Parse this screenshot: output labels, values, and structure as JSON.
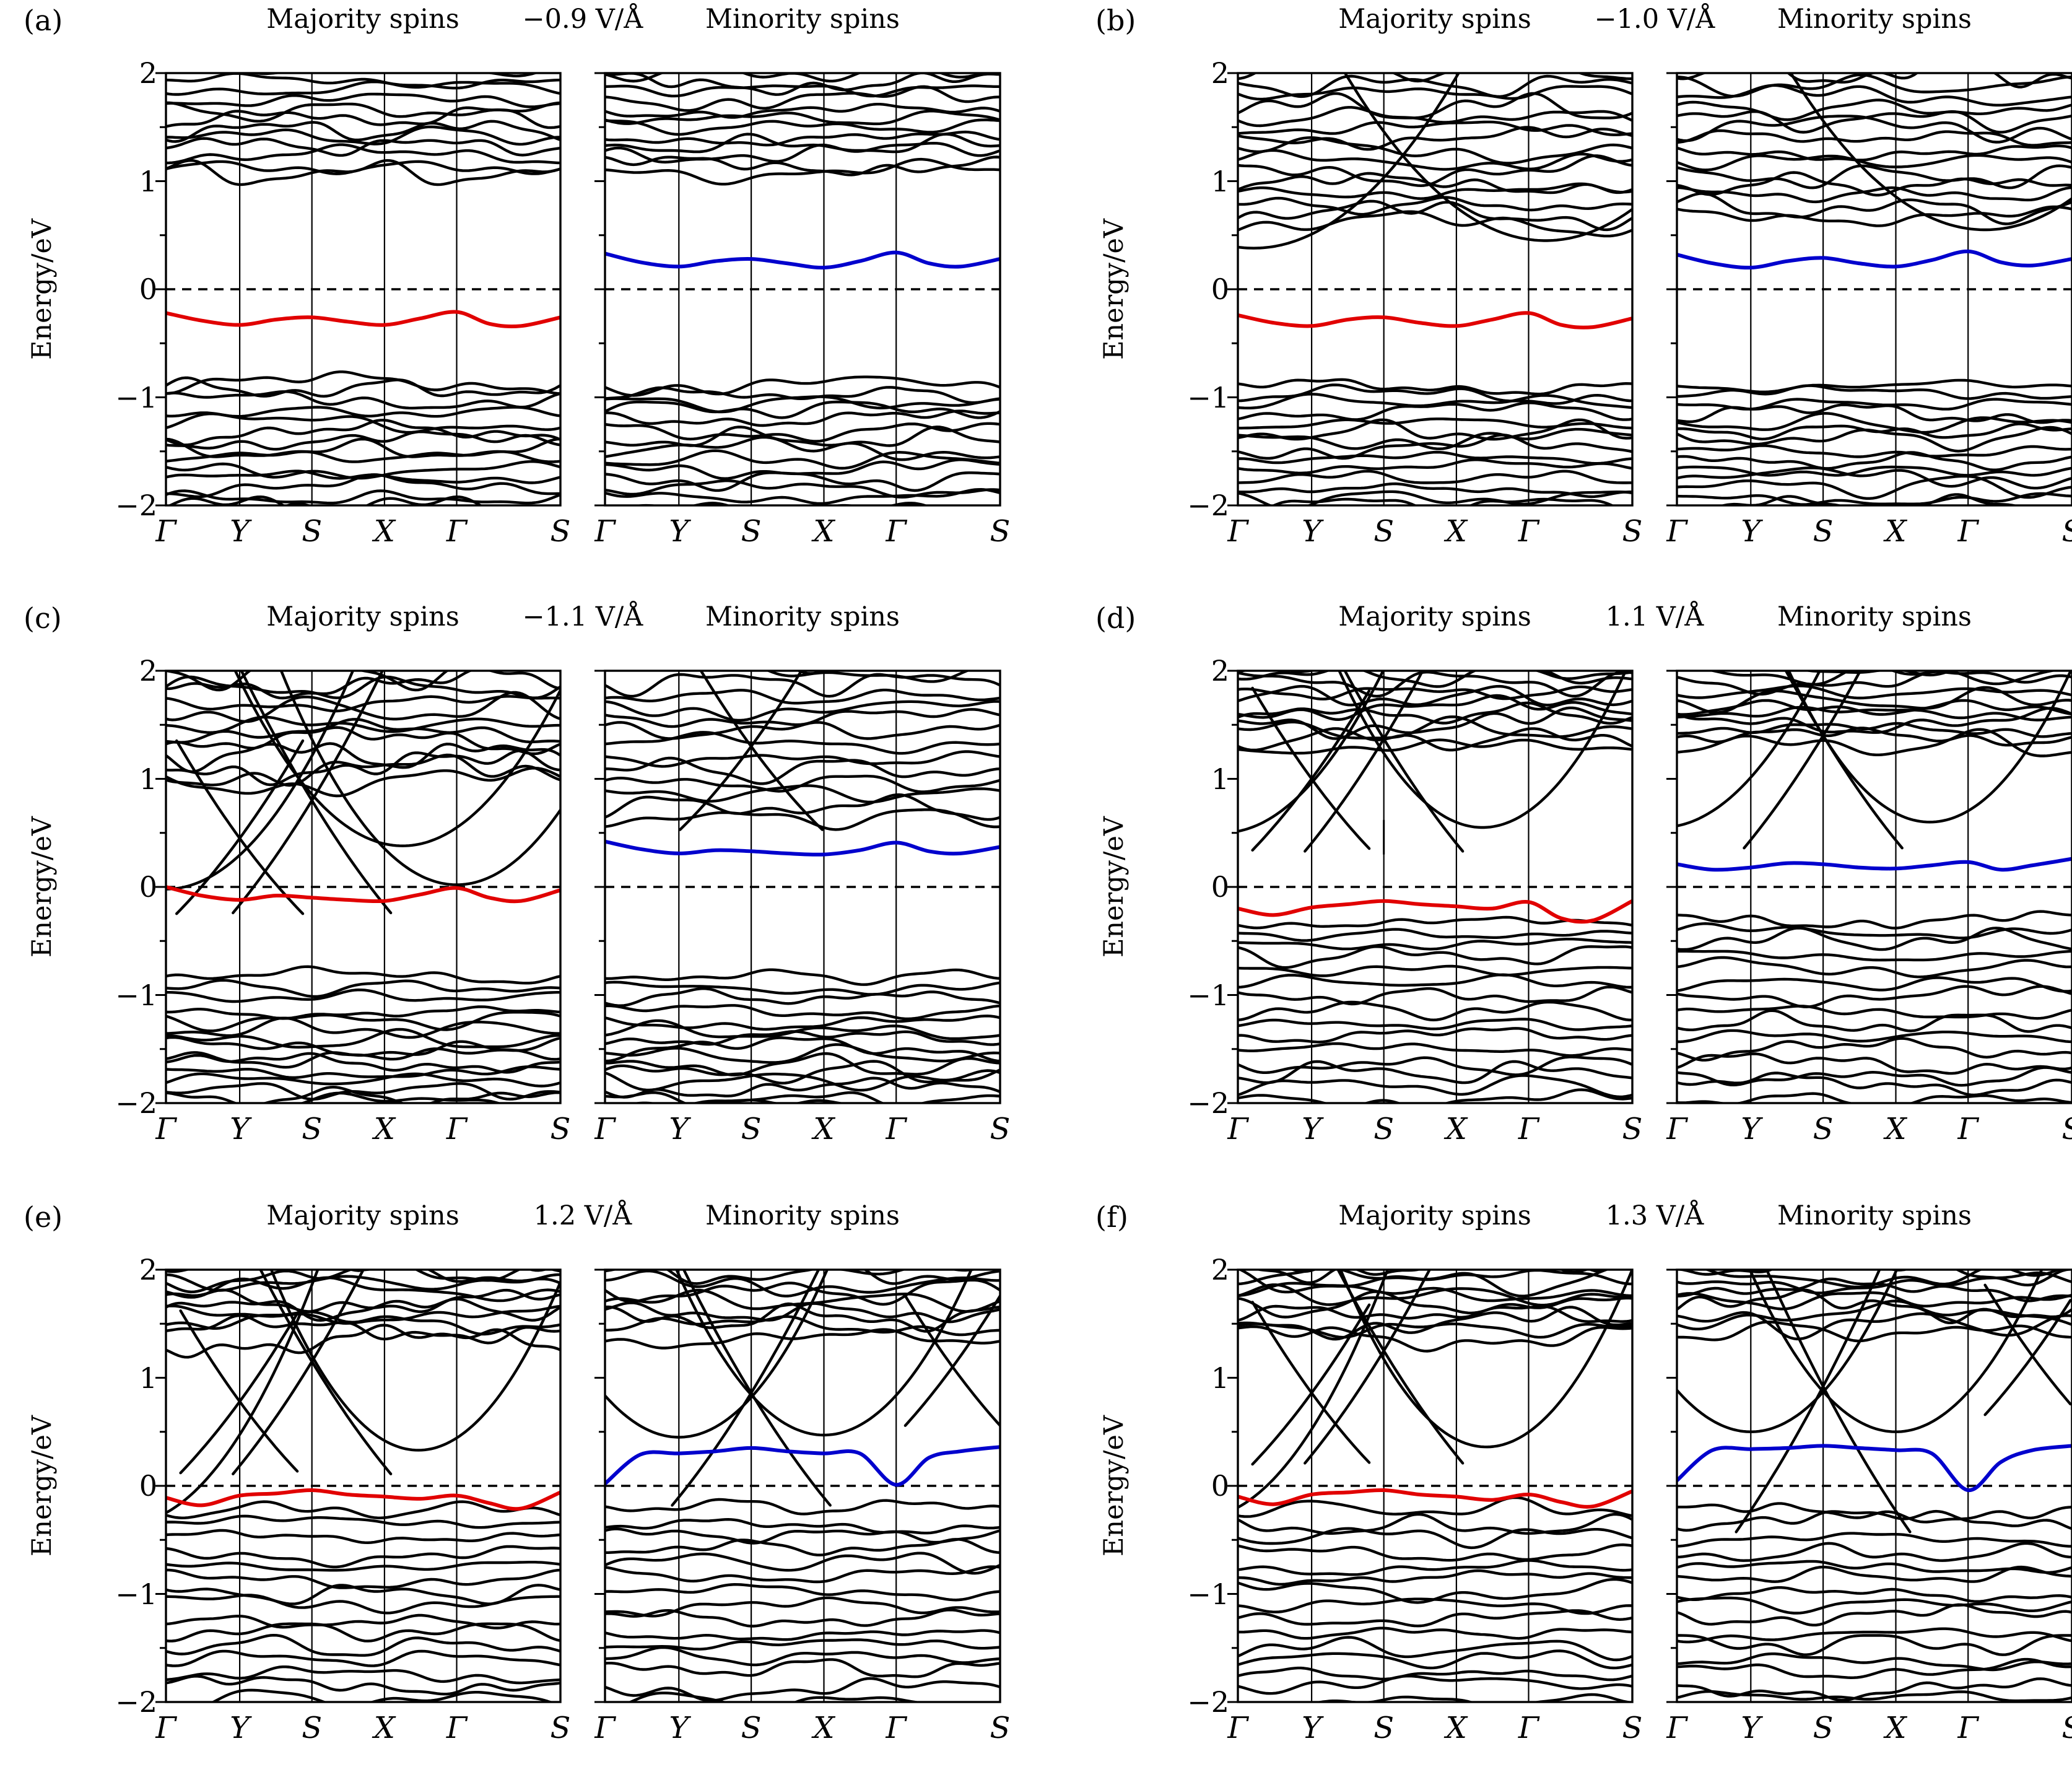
{
  "page": {
    "background": "#ffffff"
  },
  "chart_data": {
    "type": "line",
    "description_type": "spin-polarized electronic band structures under electric field",
    "ylabel": "Energy/eV",
    "ylim": [
      -2,
      2
    ],
    "yticks": [
      -2,
      -1,
      0,
      1,
      2
    ],
    "ytick_labels": [
      "−2",
      "−1",
      "0",
      "1",
      "2"
    ],
    "minor_yticks": [
      -1.5,
      -0.5,
      0.5,
      1.5
    ],
    "fermi_level": 0,
    "k_labels": [
      "Γ",
      "Y",
      "S",
      "X",
      "Γ",
      "S"
    ],
    "k_positions": [
      0,
      0.187,
      0.37,
      0.554,
      0.737,
      1.0
    ],
    "highlight_k": [
      0,
      0.09,
      0.187,
      0.28,
      0.37,
      0.46,
      0.554,
      0.645,
      0.737,
      0.82,
      0.9,
      1.0
    ],
    "colors": {
      "majority_highlight": "#e10000",
      "minority_highlight": "#0000cd",
      "bands": "#000000",
      "fermi_dash": "#000000"
    },
    "panels": [
      {
        "label": "(a)",
        "majority_title": "Majority spins",
        "field": "−0.9 V/Å",
        "minority_title": "Minority spins",
        "majority": {
          "highlight": {
            "color": "#e10000",
            "e": [
              -0.22,
              -0.29,
              -0.33,
              -0.28,
              -0.26,
              -0.3,
              -0.33,
              -0.27,
              -0.21,
              -0.32,
              -0.34,
              -0.26
            ]
          },
          "dense": [
            {
              "n": 13,
              "top": 2.1,
              "bot": 1.05,
              "amp": 0.1,
              "seed": 1
            },
            {
              "n": 15,
              "top": -0.86,
              "bot": -2.1,
              "amp": 0.09,
              "seed": 2
            }
          ],
          "parabolas": [],
          "crossings": []
        },
        "minority": {
          "highlight": {
            "color": "#0000cd",
            "e": [
              0.33,
              0.25,
              0.21,
              0.26,
              0.28,
              0.24,
              0.2,
              0.26,
              0.34,
              0.24,
              0.21,
              0.28
            ]
          },
          "dense": [
            {
              "n": 13,
              "top": 2.1,
              "bot": 1.07,
              "amp": 0.1,
              "seed": 3
            },
            {
              "n": 15,
              "top": -0.86,
              "bot": -2.1,
              "amp": 0.09,
              "seed": 4
            }
          ],
          "parabolas": [],
          "crossings": []
        }
      },
      {
        "label": "(b)",
        "majority_title": "Majority spins",
        "field": "−1.0 V/Å",
        "minority_title": "Minority spins",
        "majority": {
          "highlight": {
            "color": "#e10000",
            "e": [
              -0.24,
              -0.31,
              -0.34,
              -0.28,
              -0.26,
              -0.31,
              -0.34,
              -0.28,
              -0.22,
              -0.33,
              -0.35,
              -0.27
            ]
          },
          "dense": [
            {
              "n": 16,
              "top": 2.1,
              "bot": 0.6,
              "amp": 0.12,
              "seed": 5
            },
            {
              "n": 15,
              "top": -0.88,
              "bot": -2.1,
              "amp": 0.09,
              "seed": 6
            }
          ],
          "parabolas": [
            {
              "k": 0.04,
              "e": 0.38,
              "c": 6
            },
            {
              "k": 0.78,
              "e": 0.45,
              "c": 6
            }
          ],
          "crossings": []
        },
        "minority": {
          "highlight": {
            "color": "#0000cd",
            "e": [
              0.32,
              0.24,
              0.2,
              0.26,
              0.29,
              0.24,
              0.21,
              0.27,
              0.35,
              0.25,
              0.22,
              0.28
            ]
          },
          "dense": [
            {
              "n": 15,
              "top": 2.1,
              "bot": 0.65,
              "amp": 0.12,
              "seed": 7
            },
            {
              "n": 15,
              "top": -0.88,
              "bot": -2.1,
              "amp": 0.09,
              "seed": 8
            }
          ],
          "parabolas": [
            {
              "k": 0.78,
              "e": 0.55,
              "c": 6
            }
          ],
          "crossings": []
        }
      },
      {
        "label": "(c)",
        "majority_title": "Majority spins",
        "field": "−1.1 V/Å",
        "minority_title": "Minority spins",
        "majority": {
          "highlight": {
            "color": "#e10000",
            "e": [
              0.0,
              -0.08,
              -0.12,
              -0.08,
              -0.1,
              -0.12,
              -0.13,
              -0.07,
              -0.01,
              -0.1,
              -0.13,
              -0.03
            ]
          },
          "dense": [
            {
              "n": 13,
              "top": 2.1,
              "bot": 0.95,
              "amp": 0.13,
              "seed": 9
            },
            {
              "n": 4,
              "top": -0.8,
              "bot": -1.15,
              "amp": 0.06,
              "seed": 10
            },
            {
              "n": 12,
              "top": -1.25,
              "bot": -2.1,
              "amp": 0.09,
              "seed": 11
            }
          ],
          "parabolas": [
            {
              "k": 0.0,
              "e": -0.02,
              "c": 9
            },
            {
              "k": 0.737,
              "e": 0.02,
              "c": 10
            },
            {
              "k": 0.6,
              "e": 0.38,
              "c": 9
            }
          ],
          "crossings": [
            {
              "k": 0.187,
              "e": 0.45,
              "s": 5,
              "span": 0.16
            },
            {
              "k": 0.37,
              "e": 0.8,
              "s": 6,
              "span": 0.2
            }
          ]
        },
        "minority": {
          "highlight": {
            "color": "#0000cd",
            "e": [
              0.42,
              0.35,
              0.31,
              0.34,
              0.33,
              0.31,
              0.3,
              0.34,
              0.41,
              0.33,
              0.31,
              0.37
            ]
          },
          "dense": [
            {
              "n": 14,
              "top": 2.1,
              "bot": 0.65,
              "amp": 0.12,
              "seed": 12
            },
            {
              "n": 4,
              "top": -0.8,
              "bot": -1.15,
              "amp": 0.06,
              "seed": 13
            },
            {
              "n": 12,
              "top": -1.25,
              "bot": -2.1,
              "amp": 0.09,
              "seed": 14
            }
          ],
          "parabolas": [],
          "crossings": [
            {
              "k": 0.37,
              "e": 1.3,
              "s": 5,
              "span": 0.18
            }
          ]
        }
      },
      {
        "label": "(d)",
        "majority_title": "Majority spins",
        "field": "1.1 V/Å",
        "minority_title": "Minority spins",
        "majority": {
          "highlight": {
            "color": "#e10000",
            "e": [
              -0.2,
              -0.26,
              -0.19,
              -0.16,
              -0.13,
              -0.16,
              -0.18,
              -0.2,
              -0.14,
              -0.29,
              -0.31,
              -0.13
            ]
          },
          "dense": [
            {
              "n": 12,
              "top": 2.1,
              "bot": 1.3,
              "amp": 0.11,
              "seed": 15
            },
            {
              "n": 16,
              "top": -0.3,
              "bot": -2.1,
              "amp": 0.09,
              "seed": 16
            }
          ],
          "parabolas": [
            {
              "k": 0.62,
              "e": 0.55,
              "c": 11
            },
            {
              "k": -0.04,
              "e": 0.5,
              "c": 9
            }
          ],
          "crossings": [
            {
              "k": 0.37,
              "e": 1.37,
              "s": 6,
              "span": 0.2
            },
            {
              "k": 0.187,
              "e": 1.0,
              "s": 5,
              "span": 0.15
            }
          ],
          "artifact_vline": {
            "k": 0.37,
            "e1": 0.3,
            "e2": 0.62
          }
        },
        "minority": {
          "highlight": {
            "color": "#0000cd",
            "e": [
              0.21,
              0.16,
              0.18,
              0.22,
              0.21,
              0.18,
              0.17,
              0.2,
              0.23,
              0.16,
              0.2,
              0.26
            ]
          },
          "dense": [
            {
              "n": 12,
              "top": 2.1,
              "bot": 1.3,
              "amp": 0.11,
              "seed": 17
            },
            {
              "n": 16,
              "top": -0.28,
              "bot": -2.1,
              "amp": 0.09,
              "seed": 18
            }
          ],
          "parabolas": [
            {
              "k": 0.64,
              "e": 0.6,
              "c": 11
            },
            {
              "k": -0.04,
              "e": 0.55,
              "c": 9
            }
          ],
          "crossings": [
            {
              "k": 0.37,
              "e": 1.4,
              "s": 6,
              "span": 0.2
            }
          ]
        }
      },
      {
        "label": "(e)",
        "majority_title": "Majority spins",
        "field": "1.2 V/Å",
        "minority_title": "Minority spins",
        "majority": {
          "highlight": {
            "color": "#e10000",
            "e": [
              -0.11,
              -0.18,
              -0.09,
              -0.07,
              -0.04,
              -0.08,
              -0.1,
              -0.12,
              -0.09,
              -0.16,
              -0.21,
              -0.06
            ]
          },
          "dense": [
            {
              "n": 11,
              "top": 2.1,
              "bot": 1.35,
              "amp": 0.12,
              "seed": 19
            },
            {
              "n": 16,
              "top": -0.24,
              "bot": -2.1,
              "amp": 0.09,
              "seed": 20
            }
          ],
          "parabolas": [
            {
              "k": 0.64,
              "e": 0.33,
              "c": 12
            },
            {
              "k": -0.1,
              "e": -0.35,
              "c": 10
            }
          ],
          "crossings": [
            {
              "k": 0.37,
              "e": 1.15,
              "s": 6,
              "span": 0.2
            },
            {
              "k": 0.187,
              "e": 0.78,
              "s": 5,
              "span": 0.15
            }
          ]
        },
        "minority": {
          "highlight": {
            "color": "#0000cd",
            "e": [
              0.02,
              0.29,
              0.3,
              0.32,
              0.35,
              0.32,
              0.3,
              0.3,
              0.01,
              0.26,
              0.32,
              0.36
            ]
          },
          "dense": [
            {
              "n": 10,
              "top": 2.1,
              "bot": 1.38,
              "amp": 0.12,
              "seed": 21
            },
            {
              "n": 16,
              "top": -0.22,
              "bot": -2.1,
              "amp": 0.09,
              "seed": 22
            }
          ],
          "parabolas": [
            {
              "k": 0.187,
              "e": 0.45,
              "c": 11
            },
            {
              "k": 0.554,
              "e": 0.47,
              "c": 11
            }
          ],
          "crossings": [
            {
              "k": 0.37,
              "e": 0.86,
              "s": 6,
              "span": 0.2
            },
            {
              "k": 0.88,
              "e": 1.1,
              "s": 5,
              "span": 0.12
            }
          ]
        }
      },
      {
        "label": "(f)",
        "majority_title": "Majority spins",
        "field": "1.3 V/Å",
        "minority_title": "Minority spins",
        "majority": {
          "highlight": {
            "color": "#e10000",
            "e": [
              -0.1,
              -0.17,
              -0.08,
              -0.06,
              -0.04,
              -0.08,
              -0.1,
              -0.13,
              -0.08,
              -0.15,
              -0.19,
              -0.05
            ]
          },
          "dense": [
            {
              "n": 11,
              "top": 2.1,
              "bot": 1.38,
              "amp": 0.12,
              "seed": 23
            },
            {
              "n": 16,
              "top": -0.24,
              "bot": -2.1,
              "amp": 0.09,
              "seed": 24
            }
          ],
          "parabolas": [
            {
              "k": 0.63,
              "e": 0.36,
              "c": 12
            },
            {
              "k": -0.1,
              "e": -0.3,
              "c": 10
            }
          ],
          "crossings": [
            {
              "k": 0.37,
              "e": 1.25,
              "s": 6,
              "span": 0.2
            },
            {
              "k": 0.187,
              "e": 0.86,
              "s": 5,
              "span": 0.15
            }
          ]
        },
        "minority": {
          "highlight": {
            "color": "#0000cd",
            "e": [
              0.05,
              0.33,
              0.34,
              0.35,
              0.37,
              0.35,
              0.33,
              0.3,
              -0.04,
              0.22,
              0.33,
              0.37
            ]
          },
          "dense": [
            {
              "n": 10,
              "top": 2.1,
              "bot": 1.42,
              "amp": 0.12,
              "seed": 25
            },
            {
              "n": 16,
              "top": -0.22,
              "bot": -2.1,
              "amp": 0.09,
              "seed": 26
            }
          ],
          "parabolas": [
            {
              "k": 0.187,
              "e": 0.5,
              "c": 11
            },
            {
              "k": 0.554,
              "e": 0.5,
              "c": 11
            }
          ],
          "crossings": [
            {
              "k": 0.37,
              "e": 0.92,
              "s": 7,
              "span": 0.22
            },
            {
              "k": 0.9,
              "e": 1.2,
              "s": 5,
              "span": 0.12
            }
          ]
        }
      }
    ]
  }
}
